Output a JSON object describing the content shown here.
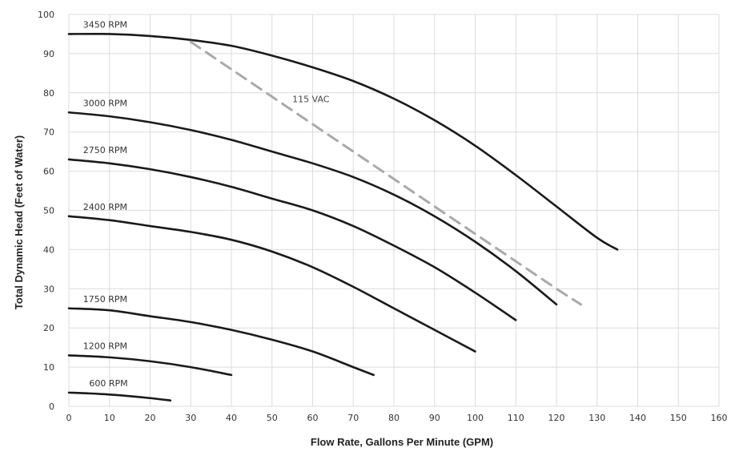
{
  "chart_data": {
    "type": "line",
    "xlabel": "Flow Rate, Gallons Per Minute (GPM)",
    "ylabel": "Total Dynamic Head (Feet of Water)",
    "xlim": [
      0,
      160
    ],
    "ylim": [
      0,
      100
    ],
    "x_ticks": [
      0,
      10,
      20,
      30,
      40,
      50,
      60,
      70,
      80,
      90,
      100,
      110,
      120,
      130,
      140,
      150,
      160
    ],
    "y_ticks": [
      0,
      10,
      20,
      30,
      40,
      50,
      60,
      70,
      80,
      90,
      100
    ],
    "grid": true,
    "series": [
      {
        "name": "3450 RPM",
        "color": "#1a1a1a",
        "dashed": false,
        "x": [
          0,
          10,
          20,
          30,
          40,
          50,
          60,
          70,
          80,
          90,
          100,
          110,
          120,
          130,
          135
        ],
        "y": [
          95,
          95,
          94.5,
          93.5,
          92,
          89.5,
          86.5,
          83,
          78.5,
          73,
          66.5,
          59,
          51,
          43,
          40
        ]
      },
      {
        "name": "3000 RPM",
        "color": "#1a1a1a",
        "dashed": false,
        "x": [
          0,
          10,
          20,
          30,
          40,
          50,
          60,
          70,
          80,
          90,
          100,
          110,
          120
        ],
        "y": [
          75,
          74,
          72.5,
          70.5,
          68,
          65,
          62,
          58.5,
          54,
          48.5,
          42,
          34.5,
          26
        ]
      },
      {
        "name": "2750 RPM",
        "color": "#1a1a1a",
        "dashed": false,
        "x": [
          0,
          10,
          20,
          30,
          40,
          50,
          60,
          70,
          80,
          90,
          100,
          110
        ],
        "y": [
          63,
          62,
          60.5,
          58.5,
          56,
          53,
          50,
          46,
          41,
          35.5,
          29,
          22
        ]
      },
      {
        "name": "2400 RPM",
        "color": "#1a1a1a",
        "dashed": false,
        "x": [
          0,
          10,
          20,
          30,
          40,
          50,
          60,
          70,
          80,
          90,
          100
        ],
        "y": [
          48.5,
          47.5,
          46,
          44.5,
          42.5,
          39.5,
          35.5,
          30.5,
          25,
          19.5,
          14
        ]
      },
      {
        "name": "1750 RPM",
        "color": "#1a1a1a",
        "dashed": false,
        "x": [
          0,
          10,
          20,
          30,
          40,
          50,
          60,
          70,
          75
        ],
        "y": [
          25,
          24.5,
          23,
          21.5,
          19.5,
          17,
          14,
          10,
          8
        ]
      },
      {
        "name": "1200 RPM",
        "color": "#1a1a1a",
        "dashed": false,
        "x": [
          0,
          10,
          20,
          30,
          40
        ],
        "y": [
          13,
          12.5,
          11.5,
          10,
          8
        ]
      },
      {
        "name": "600 RPM",
        "color": "#1a1a1a",
        "dashed": false,
        "x": [
          0,
          5,
          10,
          15,
          20,
          25
        ],
        "y": [
          3.5,
          3.3,
          3,
          2.6,
          2.1,
          1.5
        ]
      },
      {
        "name": "115 VAC",
        "color": "#a9a9a9",
        "dashed": true,
        "x": [
          30,
          40,
          50,
          60,
          70,
          80,
          90,
          100,
          110,
          120,
          126
        ],
        "y": [
          93,
          86,
          79,
          72,
          65,
          58,
          51,
          44,
          37,
          30,
          26
        ]
      }
    ]
  },
  "series_label_text": {
    "3450 RPM": "3450 RPM",
    "3000 RPM": "3000 RPM",
    "2750 RPM": "2750 RPM",
    "2400 RPM": "2400 RPM",
    "1750 RPM": "1750 RPM",
    "1200 RPM": "1200 RPM",
    "600 RPM": "600 RPM",
    "115 VAC": "115 VAC"
  }
}
